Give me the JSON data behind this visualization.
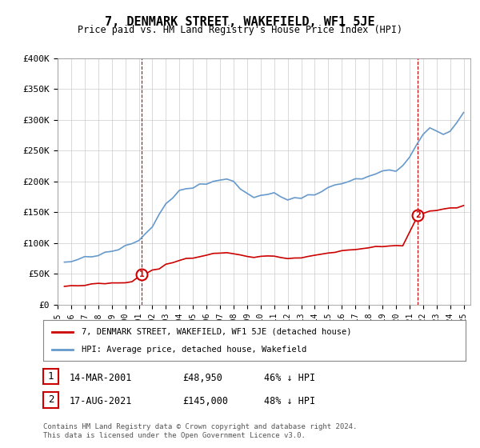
{
  "title": "7, DENMARK STREET, WAKEFIELD, WF1 5JE",
  "subtitle": "Price paid vs. HM Land Registry's House Price Index (HPI)",
  "ylabel_ticks": [
    "£0",
    "£50K",
    "£100K",
    "£150K",
    "£200K",
    "£250K",
    "£300K",
    "£350K",
    "£400K"
  ],
  "ylim": [
    0,
    400000
  ],
  "xlim_start": 1995.0,
  "xlim_end": 2025.5,
  "sale1_x": 2001.204,
  "sale1_y": 48950,
  "sale2_x": 2021.625,
  "sale2_y": 145000,
  "sale1_label": "1",
  "sale2_label": "2",
  "legend_line1": "7, DENMARK STREET, WAKEFIELD, WF1 5JE (detached house)",
  "legend_line2": "HPI: Average price, detached house, Wakefield",
  "table_row1": [
    "1",
    "14-MAR-2001",
    "£48,950",
    "46% ↓ HPI"
  ],
  "table_row2": [
    "2",
    "17-AUG-2021",
    "£145,000",
    "48% ↓ HPI"
  ],
  "footer": "Contains HM Land Registry data © Crown copyright and database right 2024.\nThis data is licensed under the Open Government Licence v3.0.",
  "red_color": "#cc0000",
  "blue_color": "#6699cc",
  "dashed_red": "#cc0000",
  "grid_color": "#cccccc",
  "background_color": "#ffffff"
}
